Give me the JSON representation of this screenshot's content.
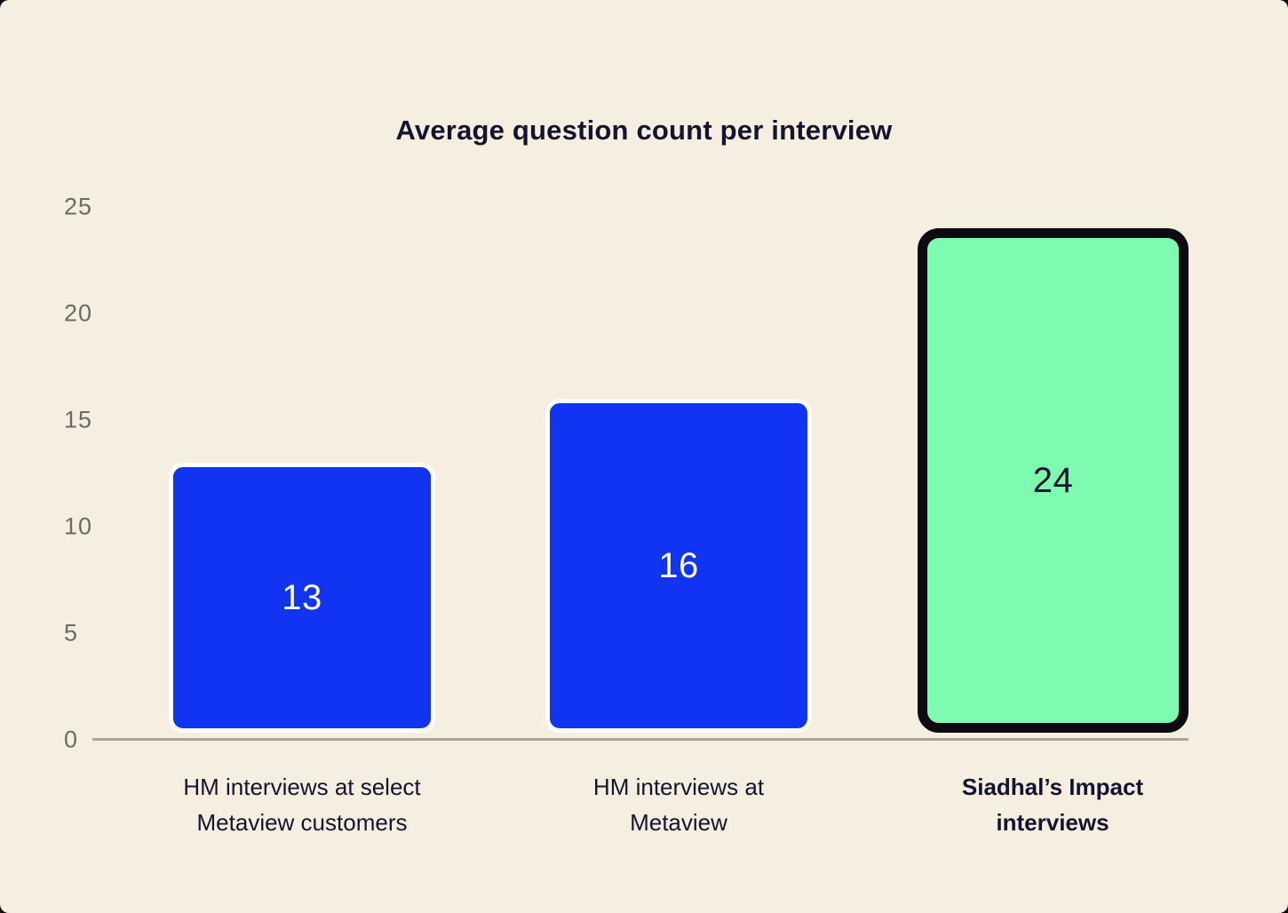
{
  "chart_data": {
    "type": "bar",
    "title": "Average question count per interview",
    "categories": [
      "HM interviews at select Metaview customers",
      "HM interviews at Metaview",
      "Siadhal’s Impact interviews"
    ],
    "category_lines": [
      [
        "HM interviews at select",
        "Metaview customers"
      ],
      [
        "HM interviews at",
        "Metaview"
      ],
      [
        "Siadhal’s Impact",
        "interviews"
      ]
    ],
    "values": [
      13,
      16,
      24
    ],
    "value_labels": [
      "13",
      "16",
      "24"
    ],
    "xlabel": "",
    "ylabel": "",
    "ylim": [
      0,
      25
    ],
    "yticks": [
      0,
      5,
      10,
      15,
      20,
      25
    ],
    "grid": false,
    "legend": false,
    "bar_styles": [
      "primary-blue",
      "primary-blue",
      "highlight-green"
    ],
    "highlight_index": 2,
    "colors": {
      "bar_blue": "#1133f2",
      "bar_green": "#7dfbb1",
      "highlight_border": "#0a0a10",
      "bar_border_white": "#ffffff"
    }
  },
  "y_axis": {
    "tick_labels": [
      "25",
      "20",
      "15",
      "10",
      "5",
      "0"
    ]
  },
  "theme": {
    "page_background": "#0a0a0a",
    "card_background": "#f6eee0",
    "title_color": "#15142f",
    "tick_color": "#6e6962",
    "axis_line_color": "#aaa59d",
    "category_label_color": "#15142f",
    "value_label_light": "#ffffff",
    "value_label_dark": "#15142f"
  }
}
